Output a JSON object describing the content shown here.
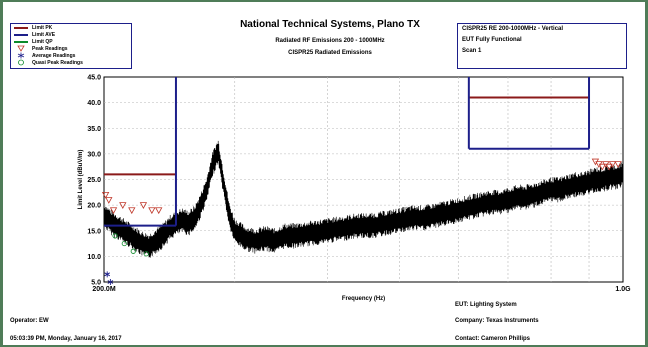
{
  "header": {
    "title": "National Technical Systems, Plano TX",
    "subtitle": "Radiated RF Emissions 200 - 1000MHz",
    "subtitle2": "CISPR25 Radiated Emissions"
  },
  "legend": {
    "items": [
      {
        "label": "Limit PK",
        "kind": "line",
        "color": "#8b1a1a"
      },
      {
        "label": "Limit AVE",
        "kind": "line",
        "color": "#1d1f8a"
      },
      {
        "label": "Limit QP",
        "kind": "line",
        "color": "#0c8a2a"
      },
      {
        "label": "Peak Readings",
        "kind": "triangle",
        "color": "#c0392b"
      },
      {
        "label": "Average Readings",
        "kind": "star",
        "color": "#1d1f8a"
      },
      {
        "label": "Quasi Peak Readings",
        "kind": "circle",
        "color": "#0c8a2a"
      }
    ]
  },
  "info": {
    "line1": "CISPR25 RE 200-1000MHz - Vertical",
    "line2": "EUT Fully Functional",
    "line3": "Scan 1"
  },
  "chart_data": {
    "type": "line",
    "xscale": "log",
    "xlim": [
      200,
      1000
    ],
    "ylim": [
      5,
      45
    ],
    "xlabel": "Frequency (Hz)",
    "ylabel": "Limit Level (dBuV/m)",
    "x_tick_labels": [
      "200.0M",
      "1.0G"
    ],
    "y_ticks": [
      5,
      10,
      15,
      20,
      25,
      30,
      35,
      40,
      45
    ],
    "y_tick_labels": [
      "5.0",
      "10.0",
      "15.0",
      "20.0",
      "25.0",
      "30.0",
      "35.0",
      "40.0",
      "45.0"
    ],
    "x_minor_gridlines": [
      300,
      400,
      500,
      600,
      700,
      800,
      900
    ],
    "limit_pk": [
      {
        "x1": 200,
        "x2": 250,
        "y": 26
      },
      {
        "x1": 620,
        "x2": 900,
        "y": 41
      }
    ],
    "limit_ave": [
      {
        "x1": 200,
        "x2": 250,
        "y": 16
      },
      {
        "x1": 250,
        "x2": 250,
        "y1": 16,
        "y2": 45
      },
      {
        "x1": 620,
        "x2": 620,
        "y1": 31,
        "y2": 45
      },
      {
        "x1": 620,
        "x2": 900,
        "y": 31
      },
      {
        "x1": 900,
        "x2": 900,
        "y1": 31,
        "y2": 45
      }
    ],
    "emission_trace": {
      "x": [
        200,
        205,
        210,
        215,
        220,
        225,
        230,
        235,
        240,
        245,
        250,
        255,
        260,
        265,
        270,
        275,
        280,
        285,
        290,
        295,
        300,
        310,
        320,
        330,
        340,
        350,
        360,
        380,
        400,
        420,
        440,
        460,
        480,
        500,
        520,
        540,
        560,
        580,
        600,
        620,
        640,
        660,
        680,
        700,
        720,
        740,
        760,
        780,
        800,
        820,
        840,
        860,
        880,
        900,
        920,
        940,
        960,
        980,
        1000
      ],
      "y": [
        18,
        16.5,
        15.5,
        14.5,
        13.5,
        12.5,
        12,
        13,
        14,
        15.5,
        16.5,
        17,
        16.5,
        17.5,
        20,
        23,
        28,
        30.5,
        24,
        18,
        15,
        13.5,
        13,
        13.5,
        13,
        14,
        14,
        14.5,
        15,
        15.5,
        16,
        16,
        16.5,
        17,
        17.5,
        17.5,
        18,
        18.5,
        19,
        19.5,
        20,
        20.5,
        20.5,
        21,
        21.5,
        21.5,
        22,
        22.5,
        23,
        23,
        23.5,
        24,
        24,
        24.5,
        25,
        25,
        25.5,
        25.5,
        26
      ]
    },
    "peak_readings": {
      "x": [
        201,
        203,
        206,
        212,
        218,
        226,
        232,
        237,
        918,
        928,
        938,
        948,
        958,
        968,
        985
      ],
      "y": [
        22,
        21,
        19,
        20,
        19,
        20,
        19,
        19,
        28.5,
        28,
        27.5,
        28,
        27.5,
        28,
        28
      ]
    },
    "average_readings": {
      "x": [
        202,
        204
      ],
      "y": [
        6.5,
        5
      ]
    },
    "quasi_peak_readings": {
      "x": [
        207,
        213,
        219,
        228
      ],
      "y": [
        14,
        12.5,
        11,
        10.5
      ]
    }
  },
  "footer": {
    "operator": "Operator: EW",
    "timestamp": "05:03:39 PM, Monday, January 16, 2017",
    "eut": "EUT: Lighting System",
    "company": "Company: Texas Instruments",
    "contact": "Contact: Cameron Phillips"
  }
}
